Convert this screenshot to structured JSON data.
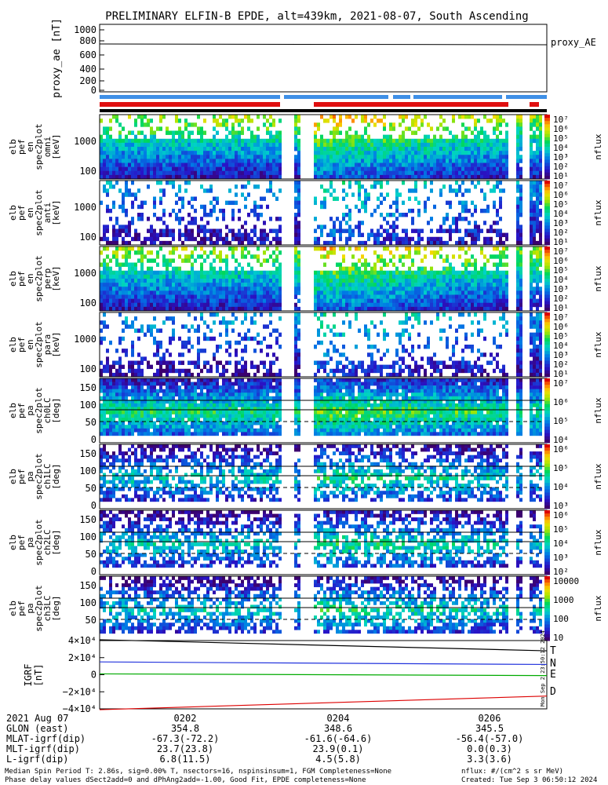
{
  "title": "PRELIMINARY ELFIN-B EPDE, alt=439km, 2021-08-07, South Ascending",
  "panels": {
    "proxy_ae": {
      "ylabel": "proxy_ae [nT]",
      "legend": "proxy_AE",
      "ticks": [
        "1000",
        "800",
        "600",
        "400",
        "200",
        "0"
      ]
    },
    "energy": [
      {
        "ylabel": [
          "elb",
          "pef",
          "en",
          "spec2plot",
          "omni",
          "[keV]"
        ],
        "ticks": [
          "1000",
          "100"
        ]
      },
      {
        "ylabel": [
          "elb",
          "pef",
          "en",
          "spec2plot",
          "anti",
          "[keV]"
        ],
        "ticks": [
          "1000",
          "100"
        ]
      },
      {
        "ylabel": [
          "elb",
          "pef",
          "en",
          "spec2plot",
          "perp",
          "[keV]"
        ],
        "ticks": [
          "1000",
          "100"
        ]
      },
      {
        "ylabel": [
          "elb",
          "pef",
          "en",
          "spec2plot",
          "para",
          "[keV]"
        ],
        "ticks": [
          "1000",
          "100"
        ]
      }
    ],
    "pitch": [
      {
        "ylabel": [
          "elb",
          "pef",
          "pa",
          "spec2plot",
          "ch0LC",
          "[deg]"
        ],
        "ticks": [
          "150",
          "100",
          "50",
          "0"
        ]
      },
      {
        "ylabel": [
          "elb",
          "pef",
          "pa",
          "spec2plot",
          "ch1LC",
          "[deg]"
        ],
        "ticks": [
          "150",
          "100",
          "50",
          "0"
        ]
      },
      {
        "ylabel": [
          "elb",
          "pef",
          "pa",
          "spec2plot",
          "ch2LC",
          "[deg]"
        ],
        "ticks": [
          "150",
          "100",
          "50",
          "0"
        ]
      },
      {
        "ylabel": [
          "elb",
          "pef",
          "pa",
          "spec2plot",
          "ch3LC",
          "[deg]"
        ],
        "ticks": [
          "150",
          "100",
          "50"
        ]
      }
    ],
    "igrf": {
      "ylabel": [
        "IGRF",
        "[nT]"
      ],
      "ticks": [
        "4×10⁴",
        "2×10⁴",
        "0",
        "−2×10⁴",
        "−4×10⁴"
      ],
      "legend": [
        "T",
        "N",
        "E",
        "D"
      ]
    }
  },
  "colorbars": [
    {
      "label": "nflux",
      "ticks": [
        "10⁷",
        "10⁶",
        "10⁵",
        "10⁴",
        "10³",
        "10²",
        "10¹"
      ]
    },
    {
      "label": "nflux",
      "ticks": [
        "10⁷",
        "10⁶",
        "10⁵",
        "10⁴",
        "10³",
        "10²",
        "10¹"
      ]
    },
    {
      "label": "nflux",
      "ticks": [
        "10⁷",
        "10⁶",
        "10⁵",
        "10⁴",
        "10³",
        "10²",
        "10¹"
      ]
    },
    {
      "label": "nflux",
      "ticks": [
        "10⁷",
        "10⁶",
        "10⁵",
        "10⁴",
        "10³",
        "10²",
        "10¹"
      ]
    },
    {
      "label": "nflux",
      "ticks": [
        "10⁷",
        "10⁶",
        "10⁵",
        "10⁴"
      ]
    },
    {
      "label": "nflux",
      "ticks": [
        "10⁶",
        "10⁵",
        "10⁴",
        "10³"
      ]
    },
    {
      "label": "nflux",
      "ticks": [
        "10⁶",
        "10⁵",
        "10⁴",
        "10³",
        "10²"
      ]
    },
    {
      "label": "nflux",
      "ticks": [
        "10000",
        "1000",
        "100",
        "10"
      ]
    }
  ],
  "footer": {
    "rows": [
      {
        "label": "2021 Aug 07",
        "values": [
          "0202",
          "0204",
          "0206"
        ]
      },
      {
        "label": "GLON (east)",
        "values": [
          "354.8",
          "348.6",
          "345.5"
        ]
      },
      {
        "label": "MLAT-igrf(dip)",
        "values": [
          "-67.3(-72.2)",
          "-61.6(-64.6)",
          "-56.4(-57.0)"
        ]
      },
      {
        "label": "MLT-igrf(dip)",
        "values": [
          "23.7(23.8)",
          "23.9(0.1)",
          "0.0(0.3)"
        ]
      },
      {
        "label": "L-igrf(dip)",
        "values": [
          "6.8(11.5)",
          "4.5(5.8)",
          "3.3(3.6)"
        ]
      }
    ],
    "note1": "Median Spin Period T: 2.86s, sig=0.00% T, nsectors=16, nspinsinsum=1, FGM Completeness=None",
    "note2": "Phase delay values dSect2add=0 and dPhAng2add=-1.00, Good Fit, EPDE completeness=None",
    "units": "nflux: #/(cm^2 s sr MeV)",
    "created": "Created: Tue Sep  3 06:50:12 2024",
    "side_stamp": "Mon Sep  2 23:50:12 2024"
  },
  "chart_data": {
    "type": "heatmap",
    "x_time_ticks": [
      "0202",
      "0204",
      "0206"
    ],
    "proxy_ae": {
      "ylim": [
        0,
        1000
      ],
      "value_nT": 760
    },
    "igrf_components": {
      "ylim": [
        -40000,
        40000
      ],
      "series": [
        {
          "name": "T",
          "color": "#000000",
          "start": 41000,
          "end": 28000
        },
        {
          "name": "N",
          "color": "#2233dd",
          "start": 15000,
          "end": 12000
        },
        {
          "name": "E",
          "color": "#00aa00",
          "start": 1000,
          "end": -1000
        },
        {
          "name": "D",
          "color": "#dd0000",
          "start": -41000,
          "end": -25000
        }
      ]
    },
    "energy_ylim_keV": [
      63,
      6000
    ],
    "pitch_ylim_deg": [
      0,
      180
    ]
  }
}
